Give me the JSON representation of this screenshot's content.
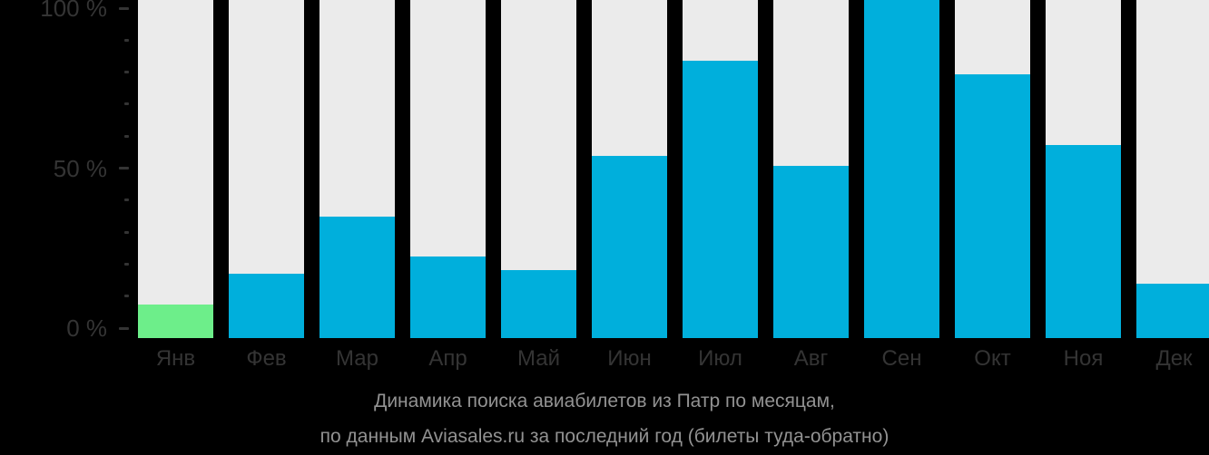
{
  "page": {
    "background": "#000000"
  },
  "chart_data": {
    "type": "bar",
    "title": "Динамика поиска авиабилетов из Патр по месяцам,",
    "subtitle": "по данным Aviasales.ru за последний год (билеты туда-обратно)",
    "categories": [
      "Янв",
      "Фев",
      "Мар",
      "Апр",
      "Май",
      "Июн",
      "Июл",
      "Авг",
      "Сен",
      "Окт",
      "Ноя",
      "Дек"
    ],
    "values": [
      10,
      19,
      36,
      24,
      20,
      54,
      82,
      51,
      100,
      78,
      57,
      16
    ],
    "unit": "%",
    "ylim": [
      0,
      100
    ],
    "yticks_labeled": [
      {
        "value": 0,
        "label": "0 %"
      },
      {
        "value": 50,
        "label": "50 %"
      },
      {
        "value": 100,
        "label": "100 %"
      }
    ],
    "ytick_minor_step": 10,
    "highlight_index": 0,
    "legend": "none",
    "grid": "off",
    "colors": {
      "bar": "#00AFDC",
      "highlight_bar": "#6DEE8A",
      "track": "#EBEBEB",
      "axis_text": "#343434",
      "caption_text": "#929292",
      "background": "#000000"
    }
  }
}
